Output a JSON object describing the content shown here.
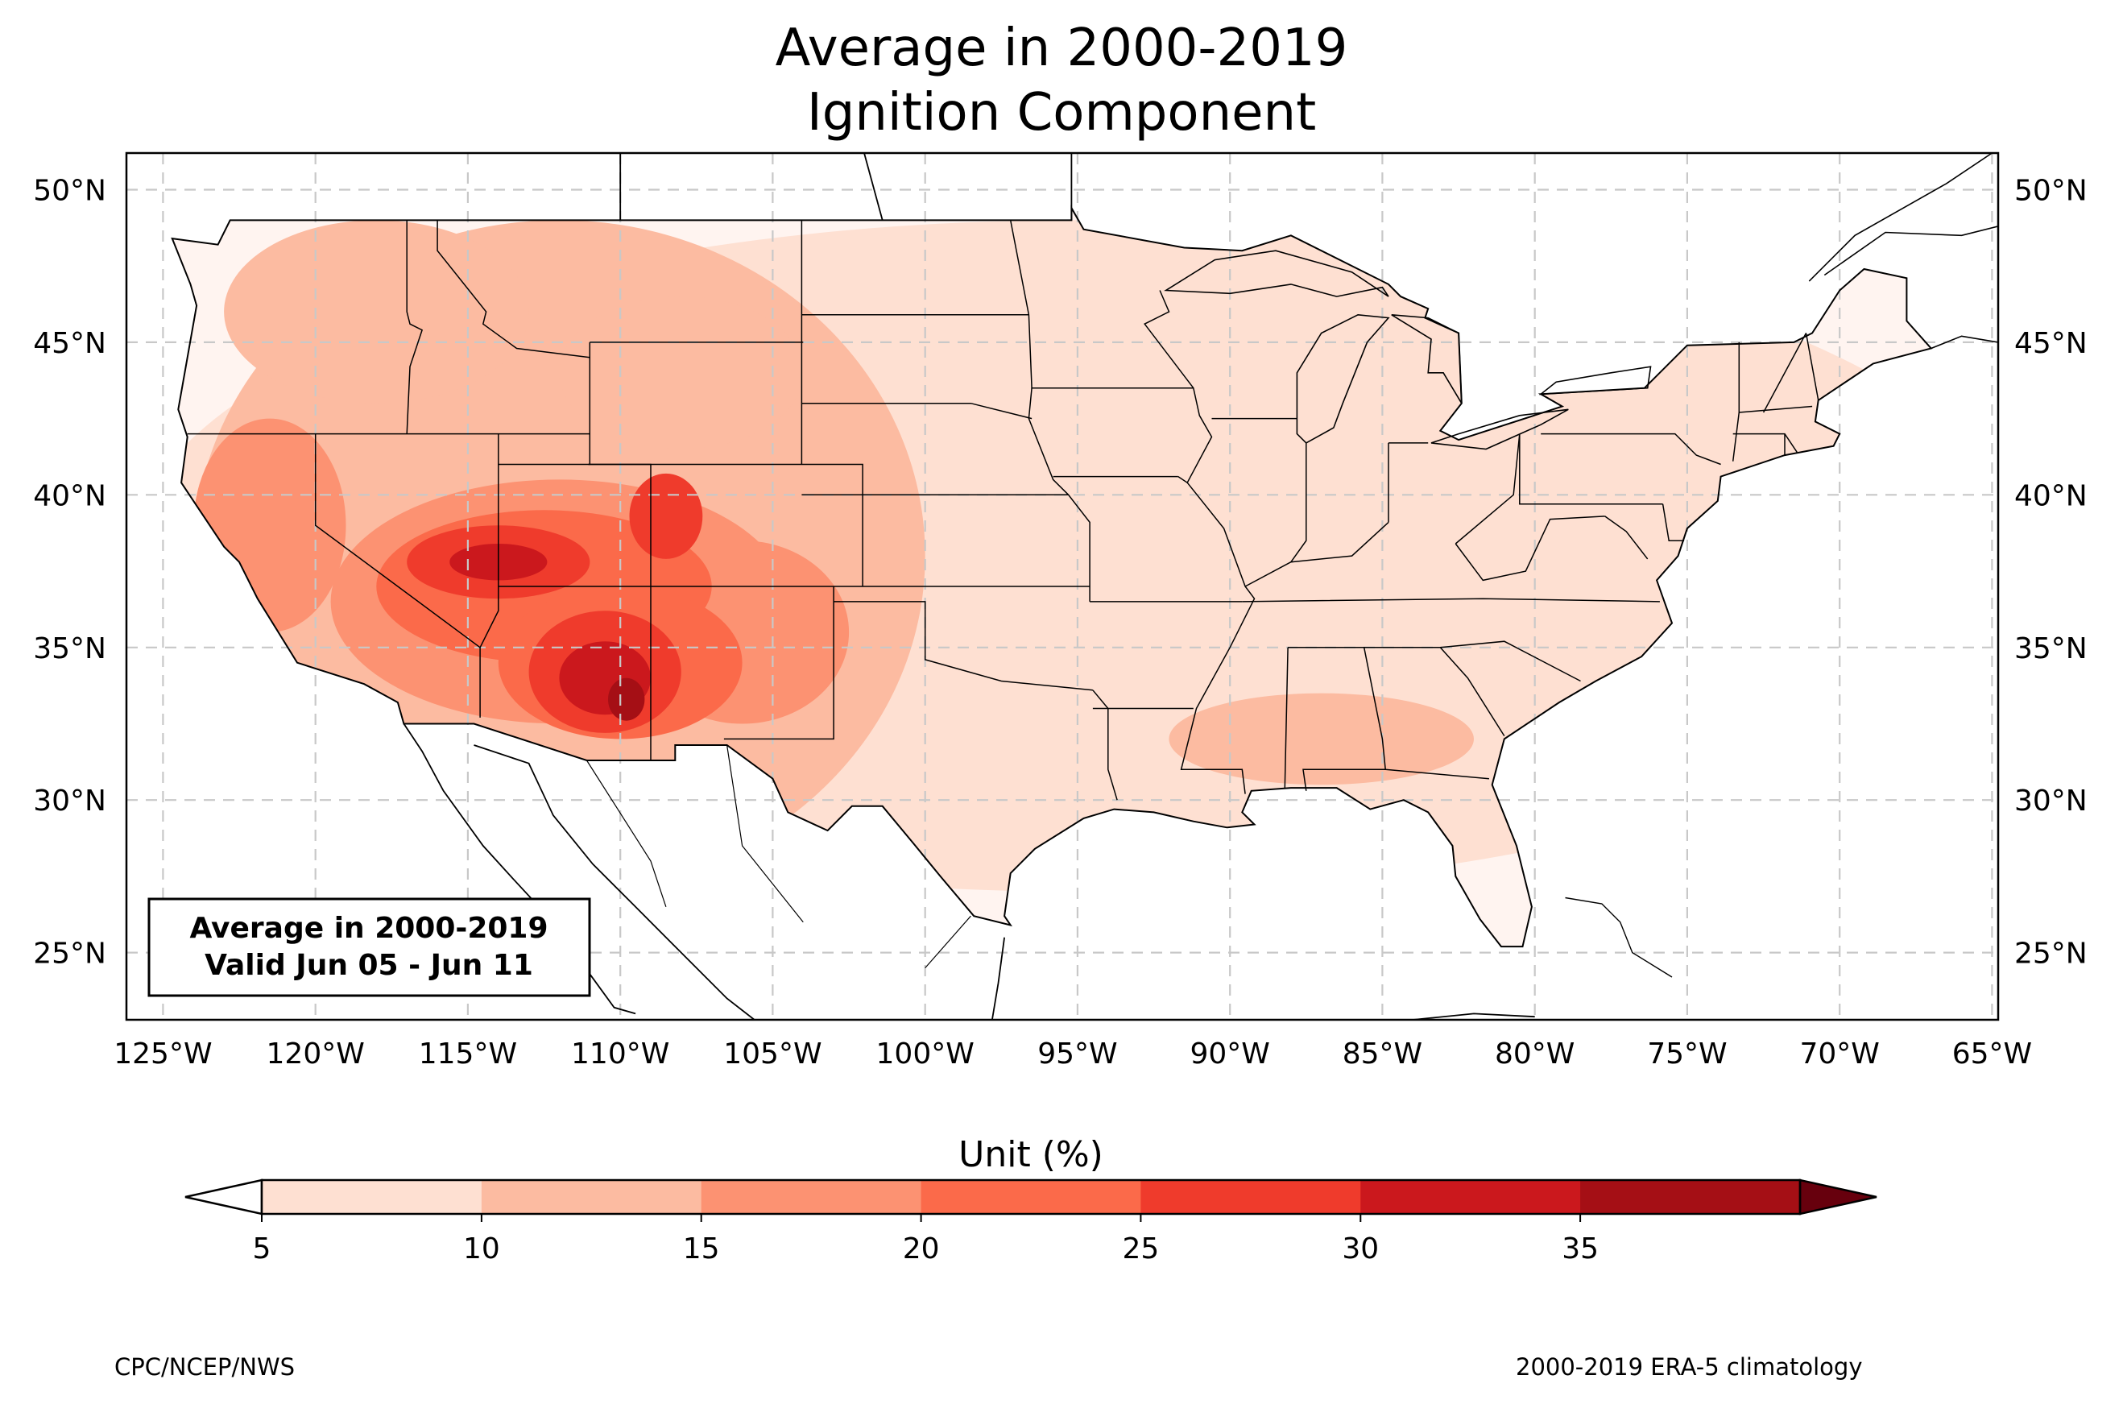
{
  "title_line1": "Average in 2000-2019",
  "title_line2": "Ignition Component",
  "info_box": {
    "line1": "Average in 2000-2019",
    "line2": "Valid Jun 05 - Jun 11"
  },
  "map": {
    "extent": {
      "lon_min": -126.2,
      "lon_max": -64.8,
      "lat_min": 22.8,
      "lat_max": 51.2
    },
    "lat_ticks": [
      {
        "value": 50,
        "label": "50°N"
      },
      {
        "value": 45,
        "label": "45°N"
      },
      {
        "value": 40,
        "label": "40°N"
      },
      {
        "value": 35,
        "label": "35°N"
      },
      {
        "value": 30,
        "label": "30°N"
      },
      {
        "value": 25,
        "label": "25°N"
      }
    ],
    "lon_ticks": [
      {
        "value": -125,
        "label": "125°W"
      },
      {
        "value": -120,
        "label": "120°W"
      },
      {
        "value": -115,
        "label": "115°W"
      },
      {
        "value": -110,
        "label": "110°W"
      },
      {
        "value": -105,
        "label": "105°W"
      },
      {
        "value": -100,
        "label": "100°W"
      },
      {
        "value": -95,
        "label": "95°W"
      },
      {
        "value": -90,
        "label": "90°W"
      },
      {
        "value": -85,
        "label": "85°W"
      },
      {
        "value": -80,
        "label": "80°W"
      },
      {
        "value": -75,
        "label": "75°W"
      },
      {
        "value": -70,
        "label": "70°W"
      },
      {
        "value": -65,
        "label": "65°W"
      }
    ],
    "gridlines": true
  },
  "colorbar": {
    "label": "Unit (%)",
    "ticks": [
      "5",
      "10",
      "15",
      "20",
      "25",
      "30",
      "35"
    ],
    "colors": [
      "#fee0d2",
      "#fcbba1",
      "#fc9272",
      "#fb6a4a",
      "#ef3b2c",
      "#cb181d",
      "#a50f15"
    ],
    "under_color": "#ffffff",
    "over_color": "#67000d",
    "extend": "both"
  },
  "footer_left": "CPC/NCEP/NWS",
  "footer_right": "2000-2019 ERA-5 climatology",
  "field_blobs": [
    {
      "lon": -95,
      "lat": 38,
      "rlon": 31,
      "rlat": 11,
      "level": 0
    },
    {
      "lon": -112,
      "lat": 38,
      "rlon": 12,
      "rlat": 11,
      "level": 1
    },
    {
      "lon": -118,
      "lat": 46,
      "rlon": 5,
      "rlat": 3,
      "level": 1
    },
    {
      "lon": -108,
      "lat": 44,
      "rlon": 4,
      "rlat": 2.5,
      "level": 1
    },
    {
      "lon": -87,
      "lat": 32,
      "rlon": 5,
      "rlat": 1.5,
      "level": 1
    },
    {
      "lon": -121.5,
      "lat": 39,
      "rlon": 2.5,
      "rlat": 3.5,
      "level": 2
    },
    {
      "lon": -112,
      "lat": 36.5,
      "rlon": 7.5,
      "rlat": 4,
      "level": 2
    },
    {
      "lon": -106,
      "lat": 35.5,
      "rlon": 3.5,
      "rlat": 3,
      "level": 2
    },
    {
      "lon": -112.5,
      "lat": 37,
      "rlon": 5.5,
      "rlat": 2.5,
      "level": 3
    },
    {
      "lon": -110,
      "lat": 34.5,
      "rlon": 4,
      "rlat": 2.5,
      "level": 3
    },
    {
      "lon": -114,
      "lat": 37.8,
      "rlon": 3,
      "rlat": 1.2,
      "level": 4
    },
    {
      "lon": -110.5,
      "lat": 34.2,
      "rlon": 2.5,
      "rlat": 2,
      "level": 4
    },
    {
      "lon": -108.5,
      "lat": 39.3,
      "rlon": 1.2,
      "rlat": 1.4,
      "level": 4
    },
    {
      "lon": -114,
      "lat": 37.8,
      "rlon": 1.6,
      "rlat": 0.6,
      "level": 5
    },
    {
      "lon": -110.5,
      "lat": 34,
      "rlon": 1.5,
      "rlat": 1.2,
      "level": 5
    },
    {
      "lon": -109.8,
      "lat": 33.3,
      "rlon": 0.6,
      "rlat": 0.7,
      "level": 6
    }
  ]
}
